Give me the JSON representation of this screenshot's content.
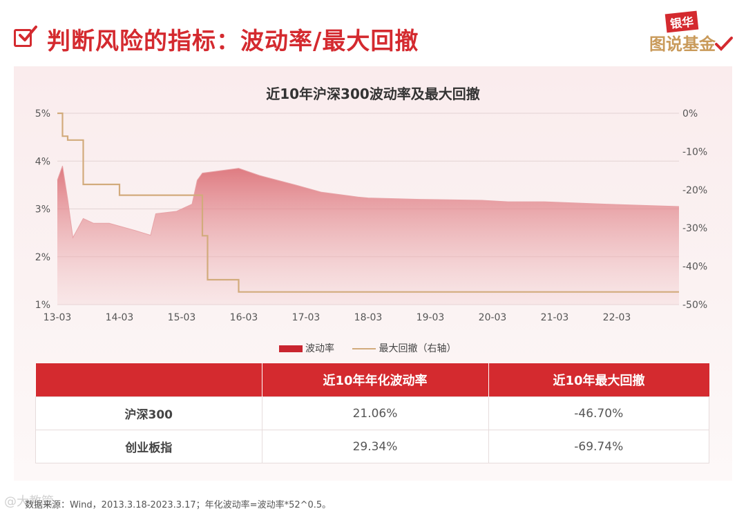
{
  "header": {
    "title": "判断风险的指标：波动率/最大回撤",
    "logo_badge": "银华",
    "logo_text": "图说基金"
  },
  "chart_data": {
    "type": "area+line",
    "title": "近10年沪深300波动率及最大回撤",
    "x_ticks": [
      "13-03",
      "14-03",
      "15-03",
      "16-03",
      "17-03",
      "18-03",
      "19-03",
      "20-03",
      "21-03",
      "22-03"
    ],
    "y_left_ticks": [
      "5%",
      "4%",
      "3%",
      "2%",
      "1%"
    ],
    "y_right_ticks": [
      "0%",
      "-10%",
      "-20%",
      "-30%",
      "-40%",
      "-50%"
    ],
    "y_left_range": [
      1,
      5
    ],
    "y_right_range": [
      -50,
      0
    ],
    "x_range": [
      "2013-03",
      "2023-03"
    ],
    "grid": true,
    "legend_position": "bottom",
    "series": [
      {
        "name": "波动率",
        "axis": "left",
        "kind": "area",
        "color": "#c9252f",
        "x": [
          "2013-03",
          "2013-04",
          "2013-05",
          "2013-06",
          "2013-08",
          "2013-10",
          "2014-01",
          "2014-06",
          "2014-09",
          "2014-10",
          "2015-02",
          "2015-05",
          "2015-06",
          "2015-07",
          "2016-02",
          "2016-06",
          "2017-01",
          "2017-06",
          "2018-01",
          "2018-03",
          "2019-01",
          "2020-01",
          "2020-06",
          "2021-01",
          "2022-01",
          "2023-03"
        ],
        "values": [
          3.6,
          3.9,
          3.2,
          2.4,
          2.8,
          2.7,
          2.7,
          2.55,
          2.45,
          2.9,
          2.95,
          3.1,
          3.6,
          3.75,
          3.85,
          3.7,
          3.5,
          3.35,
          3.25,
          3.23,
          3.2,
          3.18,
          3.15,
          3.15,
          3.1,
          3.05
        ]
      },
      {
        "name": "最大回撤（右轴）",
        "axis": "right",
        "kind": "line",
        "color": "#d2ab7c",
        "x": [
          "2013-03",
          "2013-04",
          "2013-05",
          "2013-07",
          "2013-08",
          "2014-02",
          "2014-03",
          "2015-03",
          "2015-06",
          "2015-07",
          "2015-08",
          "2016-01",
          "2016-02",
          "2023-03"
        ],
        "values": [
          0,
          -6,
          -7,
          -7,
          -18.6,
          -18.6,
          -21.4,
          -21.4,
          -21.4,
          -32,
          -43.5,
          -43.5,
          -46.7,
          -46.7
        ]
      }
    ]
  },
  "legend": {
    "volatility_label": "波动率",
    "drawdown_label": "最大回撤（右轴）"
  },
  "table": {
    "headers": [
      "",
      "近10年年化波动率",
      "近10年最大回撤"
    ],
    "rows": [
      {
        "name": "沪深300",
        "volatility": "21.06%",
        "drawdown": "-46.70%"
      },
      {
        "name": "创业板指",
        "volatility": "29.34%",
        "drawdown": "-69.74%"
      }
    ]
  },
  "footnote": "数据来源：Wind，2013.3.18-2023.3.17；年化波动率=波动率*52^0.5。",
  "watermark": "@大教管",
  "colors": {
    "brand_red": "#d42a2f",
    "area_fill": "#c9252f",
    "drawdown_line": "#d2ab7c"
  }
}
